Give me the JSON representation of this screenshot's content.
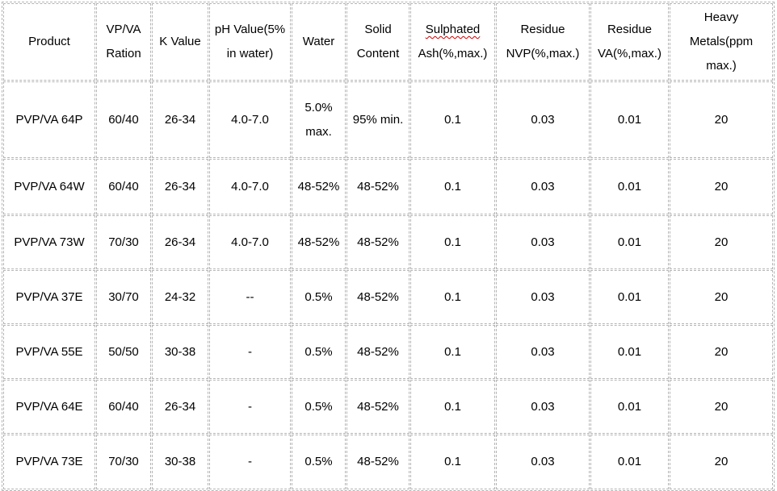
{
  "colors": {
    "border": "#b5b5b5",
    "text": "#000000",
    "spellcheck_underline": "#cc0000",
    "background": "#ffffff"
  },
  "table": {
    "columns": [
      {
        "id": "product",
        "lines": [
          "Product"
        ]
      },
      {
        "id": "vp-va-ration",
        "lines": [
          "VP/VA",
          "Ration"
        ]
      },
      {
        "id": "k-value",
        "lines": [
          "K Value"
        ]
      },
      {
        "id": "ph-value",
        "lines": [
          "pH Value(5%",
          "in water)"
        ]
      },
      {
        "id": "water",
        "lines": [
          "Water"
        ]
      },
      {
        "id": "solid-content",
        "lines": [
          "Solid",
          "Content"
        ]
      },
      {
        "id": "sulphated-ash",
        "lines": [
          "Sulphated",
          "Ash(%,max.)"
        ],
        "spellcheck_wavy_line": 0
      },
      {
        "id": "residue-nvp",
        "lines": [
          "Residue",
          "NVP(%,max.)"
        ]
      },
      {
        "id": "residue-va",
        "lines": [
          "Residue",
          "VA(%,max.)"
        ]
      },
      {
        "id": "heavy-metals",
        "lines": [
          "Heavy",
          "Metals(ppm max.)"
        ]
      }
    ],
    "rows": [
      [
        "PVP/VA 64P",
        "60/40",
        "26-34",
        "4.0-7.0",
        "5.0% max.",
        "95% min.",
        "0.1",
        "0.03",
        "0.01",
        "20"
      ],
      [
        "PVP/VA 64W",
        "60/40",
        "26-34",
        "4.0-7.0",
        "48-52%",
        "48-52%",
        "0.1",
        "0.03",
        "0.01",
        "20"
      ],
      [
        "PVP/VA 73W",
        "70/30",
        "26-34",
        "4.0-7.0",
        "48-52%",
        "48-52%",
        "0.1",
        "0.03",
        "0.01",
        "20"
      ],
      [
        "PVP/VA 37E",
        "30/70",
        "24-32",
        "--",
        "0.5%",
        "48-52%",
        "0.1",
        "0.03",
        "0.01",
        "20"
      ],
      [
        "PVP/VA 55E",
        "50/50",
        "30-38",
        "-",
        "0.5%",
        "48-52%",
        "0.1",
        "0.03",
        "0.01",
        "20"
      ],
      [
        "PVP/VA 64E",
        "60/40",
        "26-34",
        "-",
        "0.5%",
        "48-52%",
        "0.1",
        "0.03",
        "0.01",
        "20"
      ],
      [
        "PVP/VA 73E",
        "70/30",
        "30-38",
        "-",
        "0.5%",
        "48-52%",
        "0.1",
        "0.03",
        "0.01",
        "20"
      ]
    ]
  }
}
